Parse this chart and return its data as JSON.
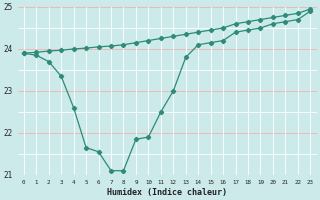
{
  "line1_x": [
    0,
    1,
    2,
    3,
    4,
    5,
    6,
    7,
    8,
    9,
    10,
    11,
    12,
    13,
    14,
    15,
    16,
    17,
    18,
    19,
    20,
    21,
    22,
    23
  ],
  "line1_y": [
    23.9,
    23.85,
    23.7,
    23.35,
    22.6,
    21.65,
    21.55,
    21.1,
    21.1,
    21.85,
    21.9,
    22.5,
    23.0,
    23.8,
    24.1,
    24.15,
    24.2,
    24.4,
    24.45,
    24.5,
    24.6,
    24.65,
    24.7,
    24.9
  ],
  "line2_x": [
    0,
    1,
    2,
    3,
    4,
    5,
    6,
    7,
    8,
    9,
    10,
    11,
    12,
    13,
    14,
    15,
    16,
    17,
    18,
    19,
    20,
    21,
    22,
    23
  ],
  "line2_y": [
    23.9,
    23.92,
    23.95,
    23.97,
    24.0,
    24.02,
    24.05,
    24.07,
    24.1,
    24.15,
    24.2,
    24.25,
    24.3,
    24.35,
    24.4,
    24.45,
    24.5,
    24.6,
    24.65,
    24.7,
    24.75,
    24.8,
    24.85,
    24.95
  ],
  "line_color": "#2d8b78",
  "bg_color": "#cceaea",
  "grid_color_white": "#ffffff",
  "grid_color_pink": "#f0b0b0",
  "xlabel": "Humidex (Indice chaleur)",
  "ylim": [
    21.0,
    25.0
  ],
  "xlim": [
    -0.5,
    23.5
  ],
  "yticks": [
    21,
    22,
    23,
    24,
    25
  ],
  "xticks": [
    0,
    1,
    2,
    3,
    4,
    5,
    6,
    7,
    8,
    9,
    10,
    11,
    12,
    13,
    14,
    15,
    16,
    17,
    18,
    19,
    20,
    21,
    22,
    23
  ]
}
